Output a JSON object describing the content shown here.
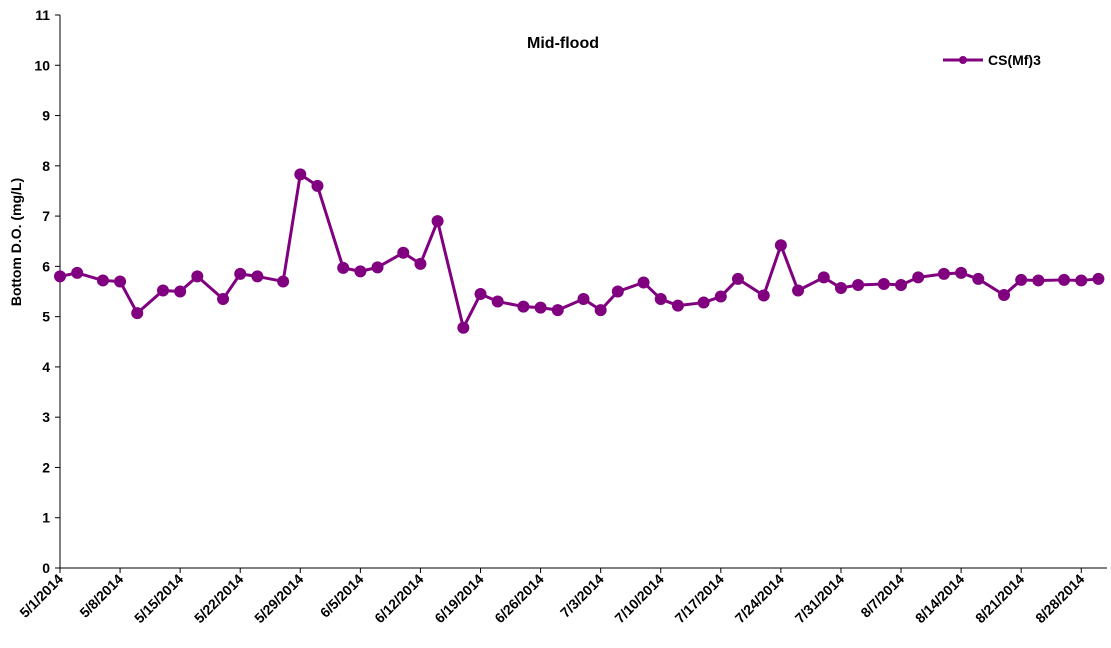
{
  "chart_data": {
    "type": "line",
    "title": "Mid-flood",
    "y_label": "Bottom D.O. (mg/L)",
    "x": [
      "5/1/2014",
      "5/3/2014",
      "5/6/2014",
      "5/8/2014",
      "5/10/2014",
      "5/13/2014",
      "5/15/2014",
      "5/17/2014",
      "5/20/2014",
      "5/22/2014",
      "5/24/2014",
      "5/27/2014",
      "5/29/2014",
      "5/31/2014",
      "6/3/2014",
      "6/5/2014",
      "6/7/2014",
      "6/10/2014",
      "6/12/2014",
      "6/14/2014",
      "6/17/2014",
      "6/19/2014",
      "6/21/2014",
      "6/24/2014",
      "6/26/2014",
      "6/28/2014",
      "7/1/2014",
      "7/3/2014",
      "7/5/2014",
      "7/8/2014",
      "7/10/2014",
      "7/12/2014",
      "7/15/2014",
      "7/17/2014",
      "7/19/2014",
      "7/22/2014",
      "7/24/2014",
      "7/26/2014",
      "7/29/2014",
      "7/31/2014",
      "8/2/2014",
      "8/5/2014",
      "8/7/2014",
      "8/9/2014",
      "8/12/2014",
      "8/14/2014",
      "8/16/2014",
      "8/19/2014",
      "8/21/2014",
      "8/23/2014",
      "8/26/2014",
      "8/28/2014",
      "8/30/2014"
    ],
    "series": [
      {
        "name": "CS(Mf)3",
        "color": "#800080",
        "values": [
          5.8,
          5.87,
          5.72,
          5.7,
          5.07,
          5.52,
          5.5,
          5.8,
          5.35,
          5.85,
          5.8,
          5.7,
          7.83,
          7.6,
          5.97,
          5.9,
          5.98,
          6.27,
          6.05,
          6.9,
          4.78,
          5.45,
          5.3,
          5.2,
          5.18,
          5.13,
          5.35,
          5.13,
          5.5,
          5.68,
          5.35,
          5.22,
          5.28,
          5.4,
          5.75,
          5.42,
          6.42,
          5.52,
          5.78,
          5.57,
          5.63,
          5.65,
          5.63,
          5.78,
          5.85,
          5.87,
          5.75,
          5.43,
          5.73,
          5.72,
          5.73,
          5.72,
          5.75
        ]
      }
    ],
    "xlim": [
      "5/1/2014",
      "8/31/2014"
    ],
    "xticks": [
      "5/1/2014",
      "5/8/2014",
      "5/15/2014",
      "5/22/2014",
      "5/29/2014",
      "6/5/2014",
      "6/12/2014",
      "6/19/2014",
      "6/26/2014",
      "7/3/2014",
      "7/10/2014",
      "7/17/2014",
      "7/24/2014",
      "7/31/2014",
      "8/7/2014",
      "8/14/2014",
      "8/21/2014",
      "8/28/2014"
    ],
    "ylim": [
      0,
      11
    ],
    "yticks": [
      0,
      1,
      2,
      3,
      4,
      5,
      6,
      7,
      8,
      9,
      10,
      11
    ],
    "grid": false,
    "legend": "top-right"
  }
}
